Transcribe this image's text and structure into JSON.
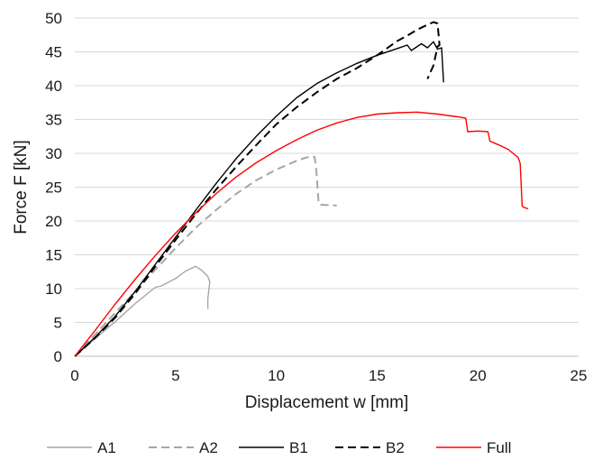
{
  "chart_data": {
    "type": "line",
    "xlabel": "Displacement w [mm]",
    "ylabel": "Force F [kN]",
    "xlim": [
      0,
      25
    ],
    "ylim": [
      0,
      50
    ],
    "xticks": [
      0,
      5,
      10,
      15,
      20,
      25
    ],
    "yticks": [
      0,
      5,
      10,
      15,
      20,
      25,
      30,
      35,
      40,
      45,
      50
    ],
    "grid": "horizontal",
    "legend_position": "bottom",
    "series": [
      {
        "name": "A1",
        "color": "#a6a6a6",
        "dash": "solid",
        "x": [
          0,
          1,
          2,
          3,
          4,
          4.3,
          5,
          5.5,
          6,
          6.3,
          6.6,
          6.7,
          6.6,
          6.6
        ],
        "y": [
          0,
          2.6,
          5.1,
          7.8,
          10.2,
          10.4,
          11.5,
          12.6,
          13.3,
          12.7,
          11.8,
          11.0,
          8.5,
          7.0
        ]
      },
      {
        "name": "A2",
        "color": "#a6a6a6",
        "dash": "dashed",
        "x": [
          0,
          1,
          2,
          3,
          4,
          5,
          6,
          7,
          8,
          9,
          10,
          11,
          11.5,
          11.9,
          12.0,
          12.1,
          12.2,
          12.8,
          13.0
        ],
        "y": [
          0,
          3.2,
          6.4,
          9.6,
          12.8,
          16.0,
          19.0,
          21.6,
          24.0,
          26.0,
          27.6,
          28.9,
          29.4,
          29.5,
          27.0,
          22.6,
          22.4,
          22.3,
          22.3
        ]
      },
      {
        "name": "B1",
        "color": "#000000",
        "dash": "solid",
        "x": [
          0,
          1,
          2,
          3,
          4,
          5,
          6,
          7,
          8,
          9,
          10,
          11,
          12,
          13,
          14,
          15,
          16,
          16.5,
          16.7,
          17.2,
          17.5,
          17.8,
          18.0,
          18.2,
          18.3
        ],
        "y": [
          0,
          2.8,
          5.9,
          9.6,
          13.6,
          17.6,
          21.6,
          25.5,
          29.2,
          32.5,
          35.5,
          38.2,
          40.3,
          41.9,
          43.3,
          44.5,
          45.5,
          46.0,
          45.2,
          46.2,
          45.6,
          46.5,
          45.4,
          45.6,
          40.5
        ]
      },
      {
        "name": "B2",
        "color": "#000000",
        "dash": "dashed",
        "x": [
          0,
          1,
          2,
          3,
          4,
          5,
          6,
          7,
          8,
          9,
          10,
          11,
          12,
          13,
          14,
          15,
          16,
          16.5,
          17,
          17.5,
          17.8,
          18.0,
          18.1,
          18.0,
          17.8,
          17.5
        ],
        "y": [
          0,
          2.7,
          5.7,
          9.3,
          13.3,
          17.2,
          21.0,
          24.6,
          28.0,
          31.2,
          34.3,
          36.8,
          39.0,
          41.0,
          42.6,
          44.5,
          46.6,
          47.4,
          48.3,
          49.0,
          49.4,
          49.2,
          46.0,
          45.8,
          43.0,
          41.0
        ]
      },
      {
        "name": "Full",
        "color": "#ff0000",
        "dash": "solid",
        "x": [
          0,
          1,
          2,
          3,
          4,
          5,
          6,
          7,
          8,
          9,
          10,
          11,
          12,
          13,
          14,
          15,
          16,
          17,
          18,
          19,
          19.4,
          19.5,
          20,
          20.5,
          20.6,
          21,
          21.5,
          22,
          22.1,
          22.2,
          22.3,
          22.5
        ],
        "y": [
          0,
          3.8,
          7.7,
          11.4,
          14.9,
          18.2,
          21.2,
          24.0,
          26.5,
          28.6,
          30.4,
          32.0,
          33.4,
          34.5,
          35.3,
          35.8,
          36.0,
          36.1,
          35.8,
          35.4,
          35.2,
          33.2,
          33.3,
          33.2,
          31.8,
          31.3,
          30.6,
          29.4,
          28.5,
          22.2,
          22.0,
          21.8
        ]
      }
    ]
  }
}
